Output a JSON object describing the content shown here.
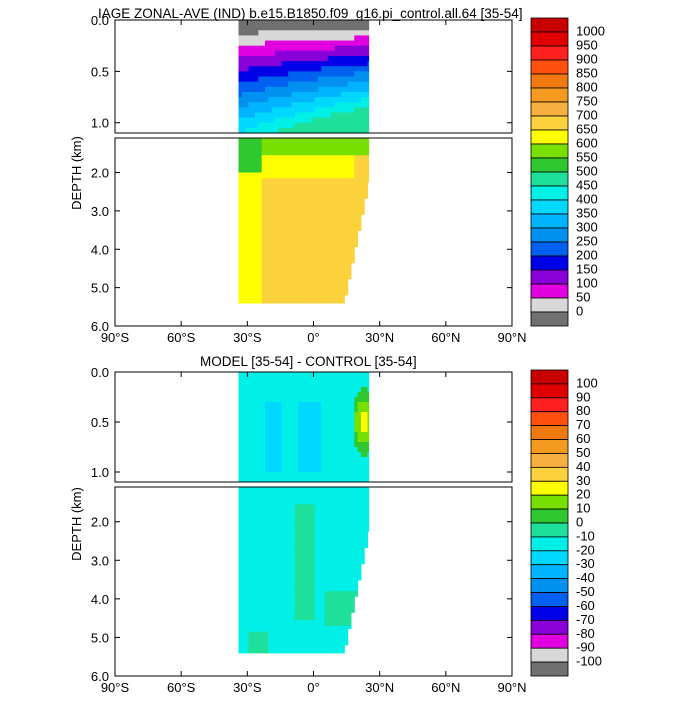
{
  "chart_data": [
    {
      "type": "heatmap",
      "title": "IAGE ZONAL-AVE (IND) b.e15.B1850.f09_g16.pi_control.all.64 [35-54]",
      "ylabel": "DEPTH (km)",
      "xlabel": "",
      "x_ticks": [
        "90°S",
        "60°S",
        "30°S",
        "0°",
        "30°N",
        "60°N",
        "90°N"
      ],
      "x_range": [
        -90,
        90
      ],
      "y_ticks_upper": [
        "0.0",
        "0.5",
        "1.0"
      ],
      "y_ticks_lower": [
        "2.0",
        "3.0",
        "4.0",
        "5.0",
        "6.0"
      ],
      "y_range_upper": [
        0,
        1.1
      ],
      "y_range_lower": [
        1.1,
        6.0
      ],
      "colorbar": {
        "labels": [
          "1000",
          "950",
          "900",
          "850",
          "800",
          "750",
          "700",
          "650",
          "600",
          "550",
          "500",
          "450",
          "400",
          "350",
          "300",
          "250",
          "200",
          "150",
          "100",
          "50",
          "0"
        ],
        "colors": [
          "#c80000",
          "#e00000",
          "#ff2020",
          "#ff5010",
          "#f07a10",
          "#f59a20",
          "#f7b040",
          "#fcd23c",
          "#ffff00",
          "#78e000",
          "#30c830",
          "#1fe09a",
          "#00f0e8",
          "#00d8ff",
          "#00b4ff",
          "#0090f0",
          "#0060f0",
          "#0000e8",
          "#8a00d8",
          "#e000e0",
          "#d8d8d8",
          "#707070"
        ]
      },
      "data_extent": {
        "lat_min": -34,
        "lat_max": 25,
        "max_depth_km": 5.4
      },
      "surface_band": {
        "values": [
          0,
          50,
          100,
          150,
          200,
          250,
          300,
          350,
          400,
          450,
          500
        ]
      },
      "deep_values": {
        "south_deep": 650,
        "interior_deep": 700,
        "north_deep": 700
      },
      "value_range": [
        0,
        1000
      ]
    },
    {
      "type": "heatmap",
      "title": "MODEL [35-54] - CONTROL [35-54]",
      "ylabel": "DEPTH (km)",
      "xlabel": "",
      "x_ticks": [
        "90°S",
        "60°S",
        "30°S",
        "0°",
        "30°N",
        "60°N",
        "90°N"
      ],
      "x_range": [
        -90,
        90
      ],
      "y_ticks_upper": [
        "0.0",
        "0.5",
        "1.0"
      ],
      "y_ticks_lower": [
        "2.0",
        "3.0",
        "4.0",
        "5.0",
        "6.0"
      ],
      "y_range_upper": [
        0,
        1.1
      ],
      "y_range_lower": [
        1.1,
        6.0
      ],
      "colorbar": {
        "labels": [
          "100",
          "90",
          "80",
          "70",
          "60",
          "50",
          "40",
          "30",
          "20",
          "10",
          "0",
          "-10",
          "-20",
          "-30",
          "-40",
          "-50",
          "-60",
          "-70",
          "-80",
          "-90",
          "-100"
        ],
        "colors": [
          "#c80000",
          "#e00000",
          "#ff2020",
          "#ff5010",
          "#f07a10",
          "#f59a20",
          "#f7b040",
          "#fcd23c",
          "#ffff00",
          "#78e000",
          "#30c830",
          "#1fe09a",
          "#00f0e8",
          "#00d8ff",
          "#00b4ff",
          "#0090f0",
          "#0060f0",
          "#0000e8",
          "#8a00d8",
          "#e000e0",
          "#d8d8d8",
          "#707070"
        ]
      },
      "data_extent": {
        "lat_min": -34,
        "lat_max": 25,
        "max_depth_km": 5.4
      },
      "dominant_values": [
        -10,
        0
      ],
      "anomaly_north_surface": {
        "lat": 23,
        "depth_km": 0.5,
        "values": [
          10,
          20,
          30
        ]
      },
      "value_range": [
        -100,
        100
      ]
    }
  ]
}
